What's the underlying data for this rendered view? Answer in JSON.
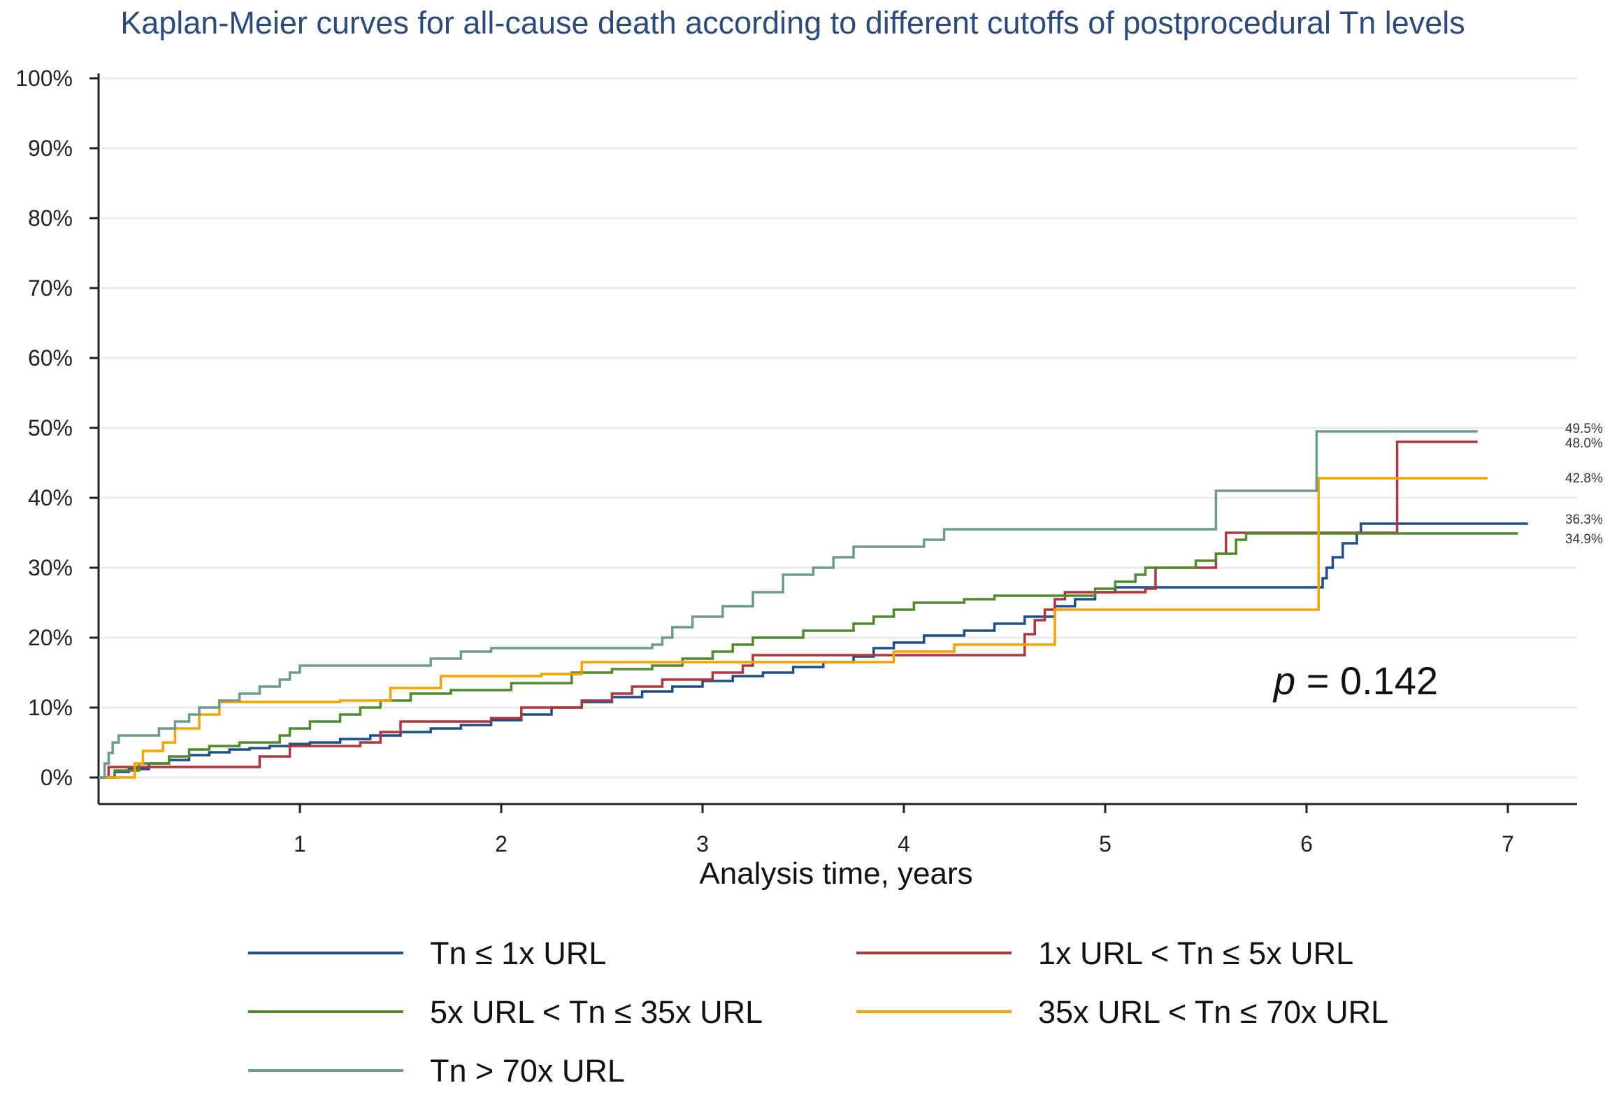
{
  "colors": {
    "s0": "#1f4e8c",
    "s1": "#b0363e",
    "s2": "#4f8a2b",
    "s3": "#f5a100",
    "s4": "#6d9a8f"
  },
  "chart_data": {
    "type": "line",
    "subtype": "kaplan-meier step",
    "title": "Kaplan-Meier curves for all-cause death according to different cutoffs of postprocedural Tn levels",
    "xlabel": "Analysis time, years",
    "ylabel": "",
    "xlim": [
      0,
      7.2
    ],
    "ylim": [
      0,
      100
    ],
    "grid": true,
    "y_ticks": [
      0,
      10,
      20,
      30,
      40,
      50,
      60,
      70,
      80,
      90,
      100
    ],
    "y_tick_labels": [
      "0%",
      "10%",
      "20%",
      "30%",
      "40%",
      "50%",
      "60%",
      "70%",
      "80%",
      "90%",
      "100%"
    ],
    "x_ticks": [
      1,
      2,
      3,
      4,
      5,
      6,
      7
    ],
    "x_tick_labels": [
      "1",
      "2",
      "3",
      "4",
      "5",
      "6",
      "7"
    ],
    "annotation": {
      "prefix": "p",
      "text": " = 0.142",
      "x": 6.15,
      "y": 13.5
    },
    "legend_position": "bottom",
    "series": [
      {
        "name": "Tn ≤ 1x URL",
        "color_key": "s0",
        "end_label": "36.3%",
        "points": [
          [
            0.0,
            0
          ],
          [
            0.08,
            0.8
          ],
          [
            0.15,
            1.2
          ],
          [
            0.25,
            2.0
          ],
          [
            0.35,
            2.5
          ],
          [
            0.45,
            3.2
          ],
          [
            0.55,
            3.6
          ],
          [
            0.65,
            4.0
          ],
          [
            0.75,
            4.2
          ],
          [
            0.85,
            4.5
          ],
          [
            0.95,
            4.8
          ],
          [
            1.05,
            5.0
          ],
          [
            1.2,
            5.5
          ],
          [
            1.35,
            6.0
          ],
          [
            1.5,
            6.5
          ],
          [
            1.65,
            7.0
          ],
          [
            1.8,
            7.5
          ],
          [
            1.95,
            8.2
          ],
          [
            2.1,
            9.0
          ],
          [
            2.25,
            10.0
          ],
          [
            2.4,
            10.8
          ],
          [
            2.55,
            11.5
          ],
          [
            2.7,
            12.3
          ],
          [
            2.85,
            13.0
          ],
          [
            3.0,
            13.8
          ],
          [
            3.15,
            14.5
          ],
          [
            3.3,
            15.0
          ],
          [
            3.45,
            15.8
          ],
          [
            3.6,
            16.5
          ],
          [
            3.75,
            17.3
          ],
          [
            3.85,
            18.5
          ],
          [
            3.95,
            19.3
          ],
          [
            4.1,
            20.3
          ],
          [
            4.3,
            21.0
          ],
          [
            4.45,
            22.0
          ],
          [
            4.6,
            23.0
          ],
          [
            4.75,
            24.5
          ],
          [
            4.85,
            25.5
          ],
          [
            4.95,
            26.5
          ],
          [
            5.05,
            27.2
          ],
          [
            6.05,
            27.2
          ],
          [
            6.08,
            28.5
          ],
          [
            6.1,
            30.0
          ],
          [
            6.13,
            31.5
          ],
          [
            6.18,
            33.5
          ],
          [
            6.25,
            35.0
          ],
          [
            6.27,
            36.3
          ],
          [
            7.1,
            36.3
          ]
        ]
      },
      {
        "name": "1x URL < Tn ≤ 5x URL",
        "color_key": "s1",
        "end_label": "48.0%",
        "points": [
          [
            0.0,
            0
          ],
          [
            0.05,
            1.5
          ],
          [
            0.65,
            1.5
          ],
          [
            0.8,
            3.0
          ],
          [
            0.95,
            4.5
          ],
          [
            1.3,
            5.0
          ],
          [
            1.4,
            6.5
          ],
          [
            1.5,
            8.0
          ],
          [
            1.95,
            8.5
          ],
          [
            2.1,
            10.0
          ],
          [
            2.4,
            11.0
          ],
          [
            2.55,
            12.0
          ],
          [
            2.65,
            13.0
          ],
          [
            2.8,
            14.0
          ],
          [
            3.05,
            15.0
          ],
          [
            3.2,
            16.0
          ],
          [
            3.25,
            17.5
          ],
          [
            4.45,
            17.5
          ],
          [
            4.6,
            20.5
          ],
          [
            4.65,
            22.5
          ],
          [
            4.7,
            24.0
          ],
          [
            4.75,
            25.5
          ],
          [
            4.8,
            26.5
          ],
          [
            5.2,
            27.0
          ],
          [
            5.25,
            30.0
          ],
          [
            5.55,
            32.0
          ],
          [
            5.6,
            35.0
          ],
          [
            6.43,
            35.0
          ],
          [
            6.45,
            48.0
          ],
          [
            6.85,
            48.0
          ]
        ]
      },
      {
        "name": "5x URL < Tn ≤ 35x URL",
        "color_key": "s2",
        "end_label": "34.9%",
        "points": [
          [
            0.0,
            0
          ],
          [
            0.08,
            1.0
          ],
          [
            0.2,
            2.0
          ],
          [
            0.35,
            3.0
          ],
          [
            0.45,
            4.0
          ],
          [
            0.55,
            4.5
          ],
          [
            0.7,
            5.0
          ],
          [
            0.9,
            6.0
          ],
          [
            0.95,
            7.0
          ],
          [
            1.05,
            8.0
          ],
          [
            1.2,
            9.0
          ],
          [
            1.3,
            10.0
          ],
          [
            1.4,
            11.0
          ],
          [
            1.55,
            12.0
          ],
          [
            1.75,
            12.5
          ],
          [
            2.05,
            13.5
          ],
          [
            2.35,
            15.0
          ],
          [
            2.55,
            15.5
          ],
          [
            2.75,
            16.0
          ],
          [
            2.9,
            17.0
          ],
          [
            3.05,
            18.0
          ],
          [
            3.15,
            19.0
          ],
          [
            3.25,
            20.0
          ],
          [
            3.5,
            21.0
          ],
          [
            3.75,
            22.0
          ],
          [
            3.85,
            23.0
          ],
          [
            3.95,
            24.0
          ],
          [
            4.05,
            25.0
          ],
          [
            4.3,
            25.5
          ],
          [
            4.45,
            26.0
          ],
          [
            4.95,
            27.0
          ],
          [
            5.05,
            28.0
          ],
          [
            5.15,
            29.0
          ],
          [
            5.2,
            30.0
          ],
          [
            5.45,
            31.0
          ],
          [
            5.55,
            32.0
          ],
          [
            5.65,
            34.0
          ],
          [
            5.7,
            34.9
          ],
          [
            7.05,
            34.9
          ]
        ]
      },
      {
        "name": "35x URL < Tn ≤ 70x URL",
        "color_key": "s3",
        "end_label": "42.8%",
        "points": [
          [
            0.0,
            0
          ],
          [
            0.15,
            0
          ],
          [
            0.18,
            2.0
          ],
          [
            0.22,
            3.8
          ],
          [
            0.32,
            5.0
          ],
          [
            0.38,
            7.0
          ],
          [
            0.5,
            9.0
          ],
          [
            0.6,
            10.8
          ],
          [
            1.2,
            11.0
          ],
          [
            1.45,
            12.8
          ],
          [
            1.7,
            14.5
          ],
          [
            2.2,
            14.8
          ],
          [
            2.4,
            16.5
          ],
          [
            3.25,
            16.5
          ],
          [
            3.9,
            16.5
          ],
          [
            3.95,
            18.0
          ],
          [
            4.25,
            19.0
          ],
          [
            4.55,
            19.0
          ],
          [
            4.75,
            24.0
          ],
          [
            6.05,
            24.0
          ],
          [
            6.06,
            42.8
          ],
          [
            6.9,
            42.8
          ]
        ]
      },
      {
        "name": "Tn > 70x URL",
        "color_key": "s4",
        "end_label": "49.5%",
        "points": [
          [
            0.0,
            0
          ],
          [
            0.03,
            2.0
          ],
          [
            0.05,
            3.5
          ],
          [
            0.07,
            5.0
          ],
          [
            0.1,
            6.0
          ],
          [
            0.3,
            7.0
          ],
          [
            0.38,
            8.0
          ],
          [
            0.45,
            9.0
          ],
          [
            0.5,
            10.0
          ],
          [
            0.6,
            11.0
          ],
          [
            0.7,
            12.0
          ],
          [
            0.8,
            13.0
          ],
          [
            0.9,
            14.0
          ],
          [
            0.95,
            15.0
          ],
          [
            1.0,
            16.0
          ],
          [
            1.65,
            17.0
          ],
          [
            1.8,
            18.0
          ],
          [
            1.95,
            18.5
          ],
          [
            2.75,
            19.0
          ],
          [
            2.8,
            20.0
          ],
          [
            2.85,
            21.5
          ],
          [
            2.95,
            23.0
          ],
          [
            3.1,
            24.5
          ],
          [
            3.25,
            26.5
          ],
          [
            3.4,
            29.0
          ],
          [
            3.55,
            30.0
          ],
          [
            3.65,
            31.5
          ],
          [
            3.75,
            33.0
          ],
          [
            4.1,
            34.0
          ],
          [
            4.2,
            35.5
          ],
          [
            5.5,
            35.5
          ],
          [
            5.55,
            41.0
          ],
          [
            6.03,
            41.0
          ],
          [
            6.05,
            49.5
          ],
          [
            6.85,
            49.5
          ]
        ]
      }
    ]
  }
}
